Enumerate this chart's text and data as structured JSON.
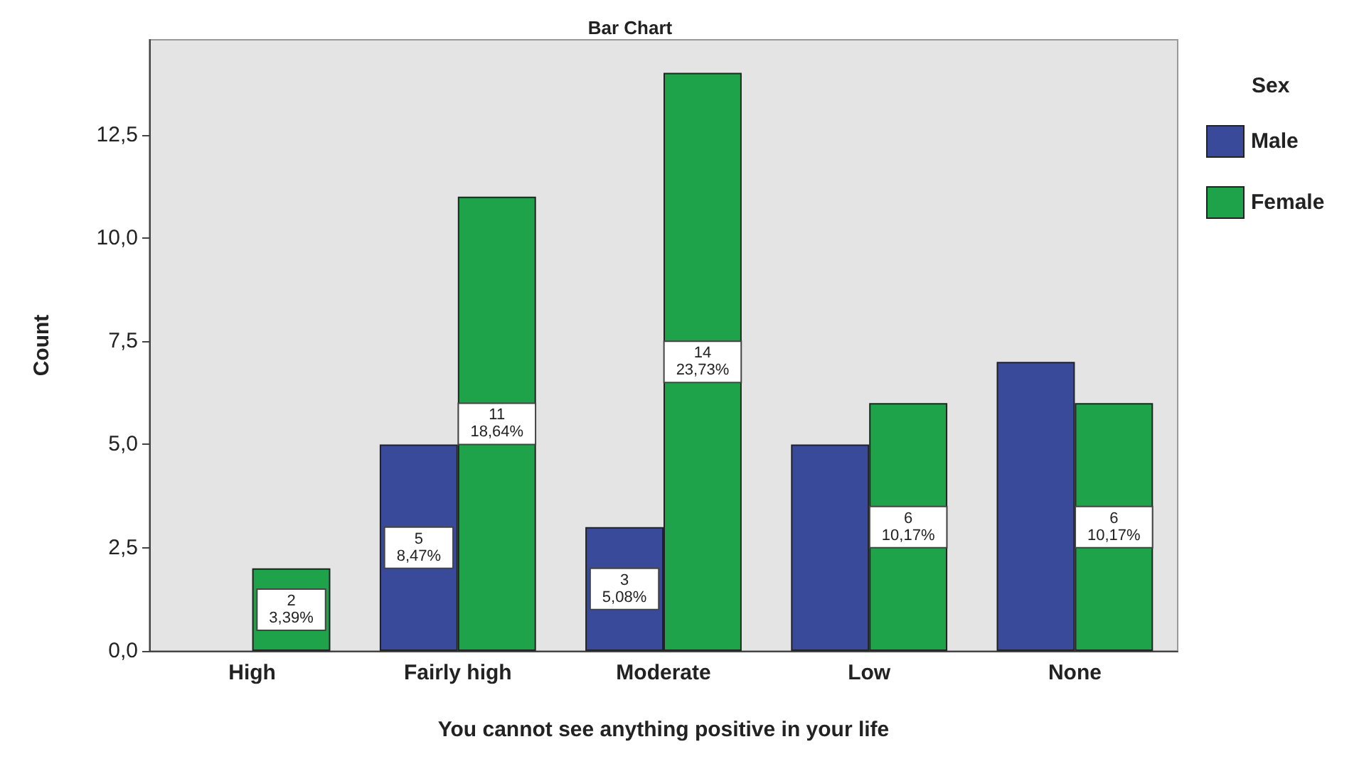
{
  "chart_data": {
    "type": "bar",
    "title": "Bar Chart",
    "xlabel": "You cannot see anything positive in your life",
    "ylabel": "Count",
    "legend_title": "Sex",
    "categories": [
      "High",
      "Fairly high",
      "Moderate",
      "Low",
      "None"
    ],
    "series": [
      {
        "name": "Male",
        "color": "#3a4a9a",
        "values": [
          0,
          5,
          3,
          5,
          7
        ],
        "value_labels": [
          null,
          "5\n8,47%",
          "3\n5,08%",
          null,
          null
        ]
      },
      {
        "name": "Female",
        "color": "#1fa34a",
        "values": [
          2,
          11,
          14,
          6,
          6
        ],
        "value_labels": [
          "2\n3,39%",
          "11\n18,64%",
          "14\n23,73%",
          "6\n10,17%",
          "6\n10,17%"
        ]
      }
    ],
    "ylim": [
      0,
      14.8
    ],
    "yticks": [
      {
        "value": 0,
        "label": "0,0"
      },
      {
        "value": 2.5,
        "label": "2,5"
      },
      {
        "value": 5,
        "label": "5,0"
      },
      {
        "value": 7.5,
        "label": "7,5"
      },
      {
        "value": 10,
        "label": "10,0"
      },
      {
        "value": 12.5,
        "label": "12,5"
      }
    ],
    "grid": false,
    "legend": "right"
  }
}
